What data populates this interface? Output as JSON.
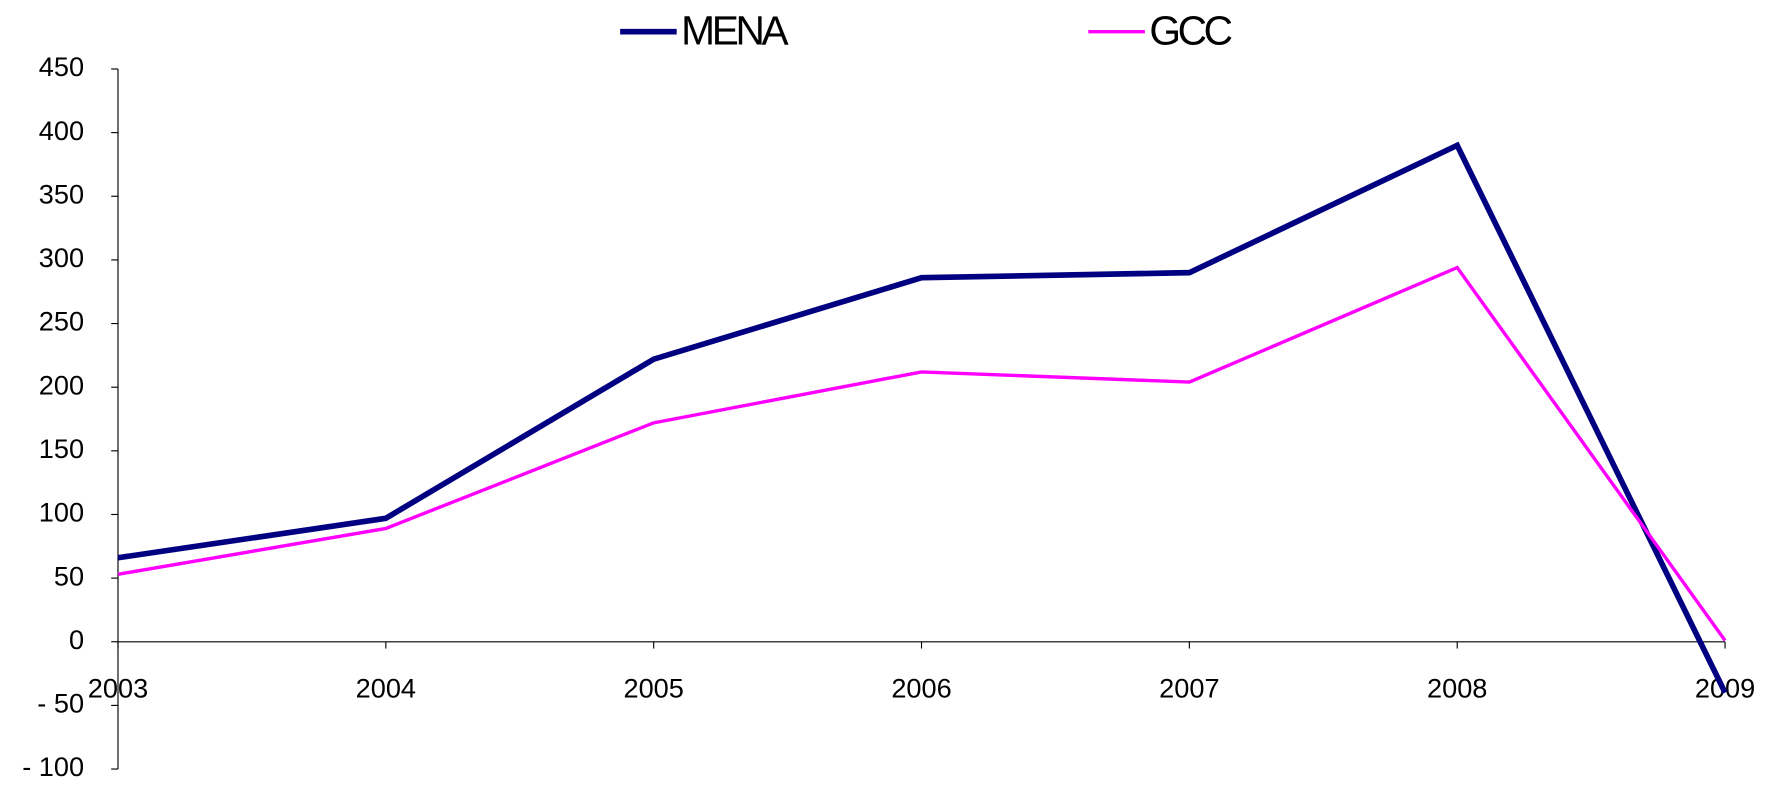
{
  "chart_data": {
    "type": "line",
    "categories": [
      "2003",
      "2004",
      "2005",
      "2006",
      "2007",
      "2008",
      "2009"
    ],
    "series": [
      {
        "name": "MENA",
        "color": "#000080",
        "values": [
          66,
          97,
          222,
          286,
          290,
          390,
          -40
        ]
      },
      {
        "name": "GCC",
        "color": "#ff00ff",
        "values": [
          53,
          89,
          172,
          212,
          204,
          294,
          1
        ]
      }
    ],
    "ylim": [
      -100,
      450
    ],
    "yticks": [
      {
        "value": -100,
        "label": "- 100"
      },
      {
        "value": -50,
        "label": "- 50"
      },
      0,
      50,
      100,
      150,
      200,
      250,
      300,
      350,
      400,
      450
    ],
    "grid": false,
    "legend": "top"
  }
}
